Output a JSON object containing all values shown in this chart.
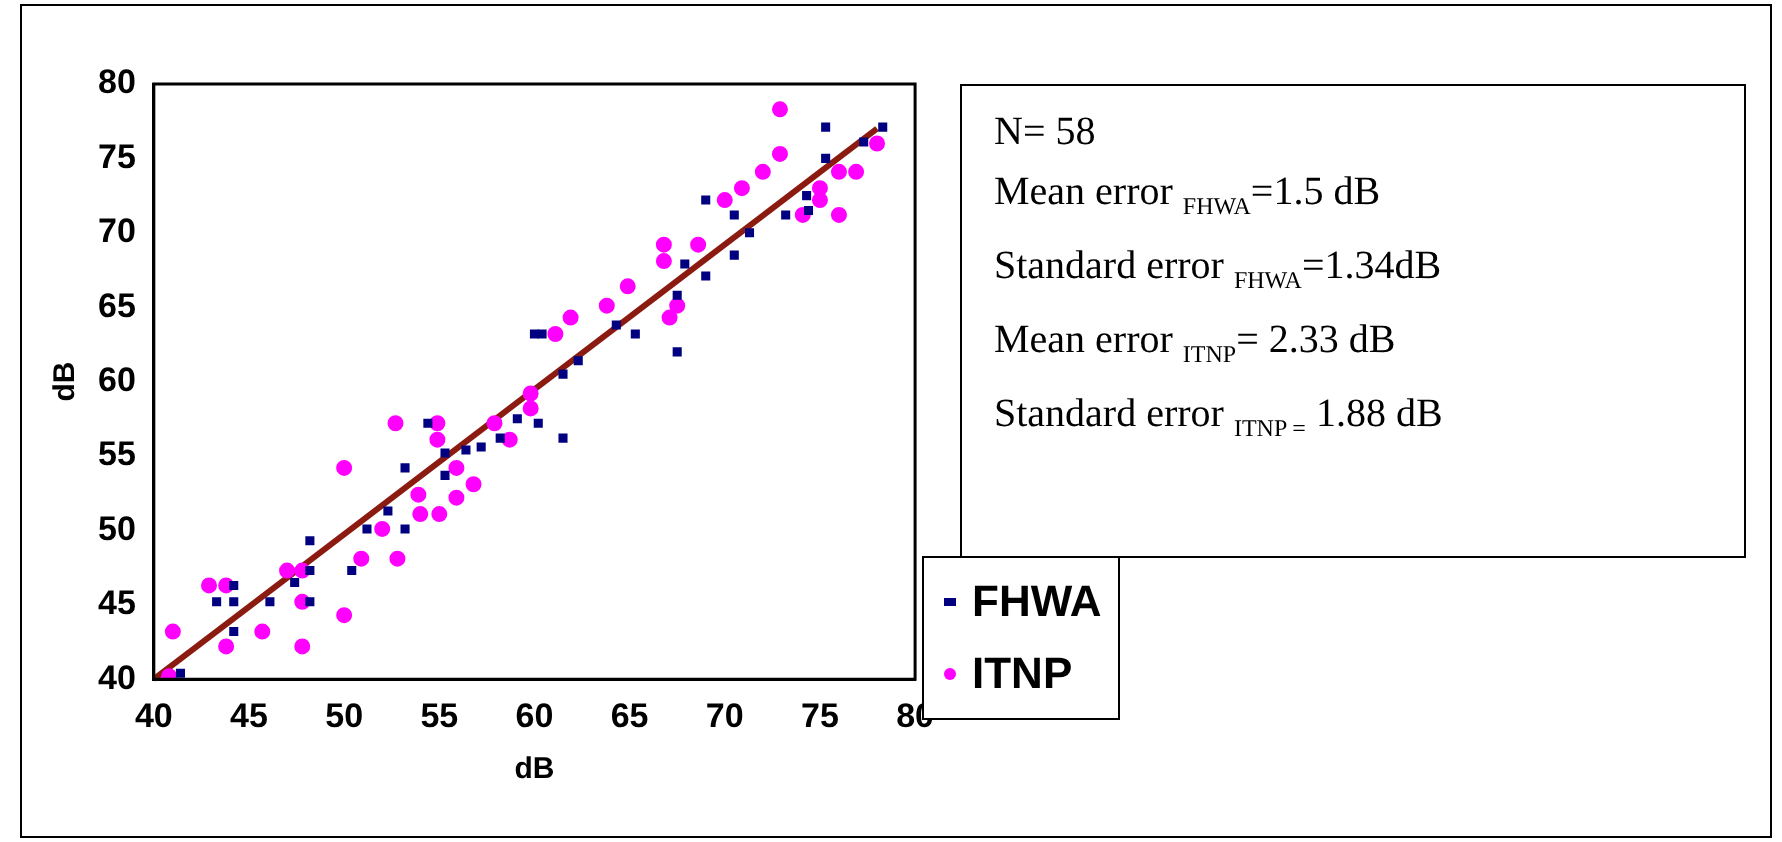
{
  "chart_data": {
    "type": "scatter",
    "xlabel": "dB",
    "ylabel": "dB",
    "xlim": [
      40,
      80
    ],
    "xticks": [
      40,
      45,
      50,
      55,
      60,
      65,
      70,
      75,
      80
    ],
    "ylim": [
      40,
      80
    ],
    "yticks": [
      40,
      45,
      50,
      55,
      60,
      65,
      70,
      75,
      80
    ],
    "grid": false,
    "legend": "right",
    "annotations": [
      "N= 58",
      "Mean error $_{FHWA}$=1.5 dB",
      "Standard error $_{FHWA}$=1.34dB",
      "Mean error $_{ITNP}$= 2.33 dB",
      "Standard error $_{ITNP =}$ 1.88  dB"
    ],
    "series": [
      {
        "name": "FHWA",
        "color": "#000080",
        "marker": "square",
        "x": [
          75.3,
          78.3,
          75.3,
          77.3,
          69,
          70.5,
          73.2,
          74.4,
          74.3,
          71.3,
          70.5,
          69,
          67.9,
          67.5,
          67.5,
          65.3,
          64.3,
          60,
          60.4,
          62.3,
          61.5,
          59.1,
          60.2,
          61.5,
          58.2,
          57.2,
          56.4,
          55.3,
          54.4,
          53.2,
          55.3,
          51.2,
          50.4,
          53.2,
          52.3,
          48.2,
          48.2,
          47.4,
          48.2,
          43.3,
          44.2,
          44.2,
          44.2,
          46.1,
          41.4
        ],
        "values": [
          77.1,
          77.1,
          75,
          76.1,
          72.2,
          71.2,
          71.2,
          71.5,
          72.5,
          70,
          68.5,
          67.1,
          67.9,
          65.8,
          62,
          63.2,
          63.8,
          63.2,
          63.2,
          61.4,
          60.5,
          57.5,
          57.2,
          56.2,
          56.2,
          55.6,
          55.4,
          55.2,
          57.2,
          54.2,
          53.7,
          50.1,
          47.3,
          50.1,
          51.3,
          49.3,
          47.3,
          46.5,
          45.2,
          45.2,
          45.2,
          46.3,
          43.2,
          45.2,
          40.4
        ]
      },
      {
        "name": "ITNP",
        "color": "#ff00ff",
        "marker": "circle",
        "x": [
          72.9,
          72.9,
          72,
          70.9,
          70,
          78,
          76,
          76.9,
          75,
          75,
          74.1,
          76,
          66.8,
          66.8,
          68.6,
          64.9,
          63.8,
          61.9,
          61.1,
          67.1,
          67.5,
          59.8,
          59.8,
          58.7,
          57.9,
          54.9,
          54.9,
          52.7,
          55.9,
          56.8,
          55.9,
          50,
          53.9,
          54,
          55,
          52,
          50.9,
          52.8,
          50,
          47.8,
          47,
          47.8,
          47.8,
          45.7,
          42.9,
          43.8,
          43.8,
          41,
          40.8
        ],
        "values": [
          78.3,
          75.3,
          74.1,
          73,
          72.2,
          76,
          74.1,
          74.1,
          73,
          72.2,
          71.2,
          71.2,
          69.2,
          68.1,
          69.2,
          66.4,
          65.1,
          64.3,
          63.2,
          64.3,
          65.1,
          59.2,
          58.2,
          56.1,
          57.2,
          57.2,
          56.1,
          57.2,
          54.2,
          53.1,
          52.2,
          54.2,
          52.4,
          51.1,
          51.1,
          50.1,
          48.1,
          48.1,
          44.3,
          47.3,
          47.3,
          45.2,
          42.2,
          43.2,
          46.3,
          46.3,
          42.2,
          43.2,
          40.2
        ]
      },
      {
        "type": "line",
        "color": "#8b1a10",
        "marker": "none",
        "line_style": "solid",
        "x": [
          40,
          78
        ],
        "values": [
          40,
          77
        ]
      }
    ]
  }
}
